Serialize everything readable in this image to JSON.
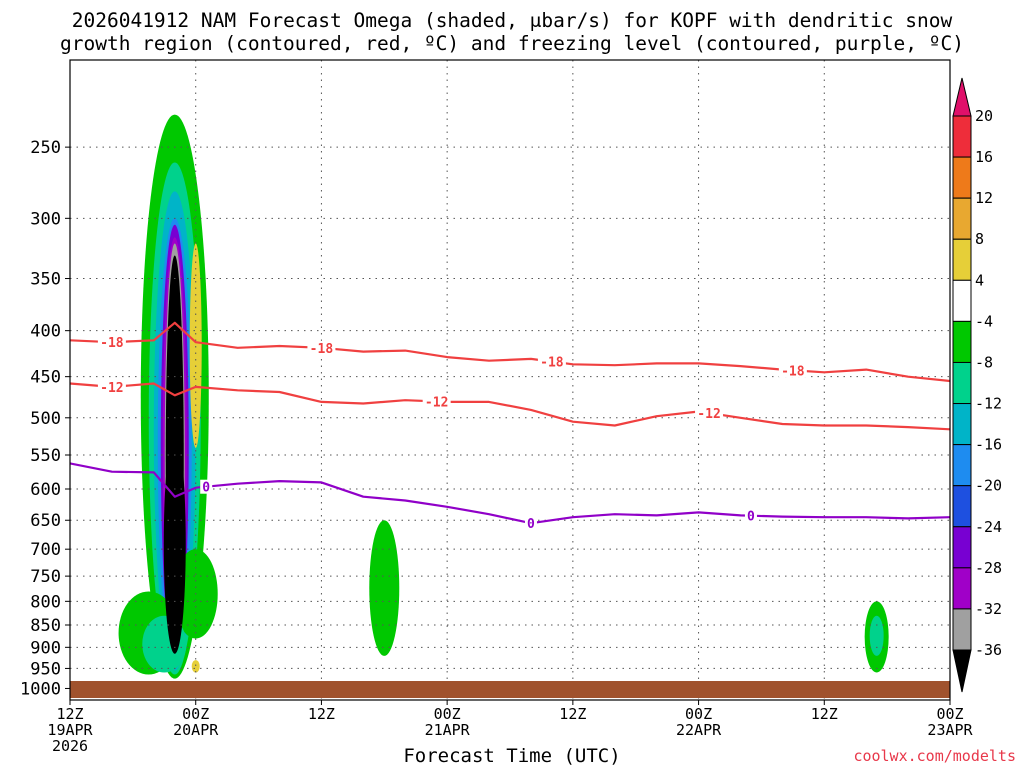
{
  "title": {
    "line1": "2026041912 NAM Forecast Omega (shaded, μbar/s) for KOPF with dendritic snow",
    "line2": "growth region (contoured, red, ºC) and freezing level (contoured, purple, ºC)"
  },
  "credit": "coolwx.com/modelts",
  "chart_data": {
    "type": "time-height cross section",
    "title": "2026041912 NAM Forecast Omega (shaded, μbar/s) for KOPF with dendritic snow growth region (contoured, red, ºC) and freezing level (contoured, purple, ºC)",
    "xlabel": "Forecast Time (UTC)",
    "ylabel": "",
    "x_range_hours": [
      0,
      84
    ],
    "y_range_hpa": [
      1030,
      200
    ],
    "y_scale": "log",
    "y_ticks": [
      250,
      300,
      350,
      400,
      450,
      500,
      550,
      600,
      650,
      700,
      750,
      800,
      850,
      900,
      950,
      1000
    ],
    "x_ticks": [
      {
        "hour": 0,
        "lines": [
          "12Z",
          "19APR",
          "2026"
        ]
      },
      {
        "hour": 12,
        "lines": [
          "00Z",
          "20APR"
        ]
      },
      {
        "hour": 24,
        "lines": [
          "12Z"
        ]
      },
      {
        "hour": 36,
        "lines": [
          "00Z",
          "21APR"
        ]
      },
      {
        "hour": 48,
        "lines": [
          "12Z"
        ]
      },
      {
        "hour": 60,
        "lines": [
          "00Z",
          "22APR"
        ]
      },
      {
        "hour": 72,
        "lines": [
          "12Z"
        ]
      },
      {
        "hour": 84,
        "lines": [
          "00Z",
          "23APR"
        ]
      }
    ],
    "colorbar": {
      "levels": [
        "20",
        "16",
        "12",
        "8",
        "4",
        "-4",
        "-8",
        "-12",
        "-16",
        "-20",
        "-24",
        "-28",
        "-32",
        "-36"
      ],
      "colors": [
        "#e0106a",
        "#ee2d3a",
        "#ee7a1a",
        "#e8a830",
        "#e6cf38",
        "#ffffff",
        "#00c800",
        "#00d28c",
        "#00b4c8",
        "#1e8cf0",
        "#1e50e0",
        "#7800d2",
        "#a000c8",
        "#a0a0a0",
        "#000000"
      ]
    },
    "omega_features": [
      {
        "name": "ascent core",
        "hour_center": 10,
        "p_top": 230,
        "p_bottom": 975,
        "min_value": "< -36"
      },
      {
        "name": "weak ascent",
        "hour_center": 30,
        "p_top": 650,
        "p_bottom": 920,
        "min_value": -8
      },
      {
        "name": "weak ascent",
        "hour_center": 77,
        "p_top": 800,
        "p_bottom": 960,
        "min_value": -12
      },
      {
        "name": "weak descent",
        "hour_center": 12,
        "p_top": 320,
        "p_bottom": 540,
        "max_value": 4
      }
    ],
    "series": [
      {
        "name": "-18 isotherm",
        "color": "#f04040",
        "unit": "ºC",
        "x": [
          0,
          4,
          8,
          10,
          12,
          16,
          20,
          24,
          28,
          32,
          36,
          40,
          44,
          48,
          52,
          56,
          60,
          64,
          68,
          72,
          76,
          80,
          84
        ],
        "y": [
          410,
          412,
          410,
          392,
          412,
          418,
          416,
          418,
          422,
          421,
          428,
          432,
          430,
          436,
          437,
          435,
          435,
          438,
          442,
          445,
          442,
          450,
          455
        ]
      },
      {
        "name": "-12 isotherm",
        "color": "#f04040",
        "unit": "ºC",
        "x": [
          0,
          4,
          8,
          10,
          12,
          16,
          20,
          24,
          28,
          32,
          36,
          40,
          44,
          48,
          52,
          56,
          60,
          64,
          68,
          72,
          76,
          80,
          84
        ],
        "y": [
          458,
          462,
          458,
          472,
          462,
          466,
          468,
          480,
          482,
          478,
          480,
          480,
          490,
          505,
          510,
          498,
          492,
          500,
          508,
          510,
          510,
          512,
          515
        ]
      },
      {
        "name": "0 isotherm",
        "color": "#9000c8",
        "unit": "ºC",
        "x": [
          0,
          4,
          8,
          10,
          12,
          16,
          20,
          24,
          28,
          32,
          36,
          40,
          44,
          48,
          52,
          56,
          60,
          64,
          68,
          72,
          76,
          80,
          84
        ],
        "y": [
          562,
          574,
          575,
          612,
          598,
          592,
          588,
          590,
          612,
          618,
          628,
          640,
          655,
          645,
          640,
          642,
          637,
          642,
          644,
          645,
          645,
          647,
          645
        ]
      }
    ],
    "contour_labels": [
      {
        "text": "-18",
        "series": "-18 isotherm",
        "hours": [
          4,
          24,
          46,
          69
        ]
      },
      {
        "text": "-12",
        "series": "-12 isotherm",
        "hours": [
          4,
          35,
          61
        ]
      },
      {
        "text": "0",
        "series": "0 isotherm",
        "hours": [
          13,
          44,
          65
        ]
      }
    ]
  }
}
